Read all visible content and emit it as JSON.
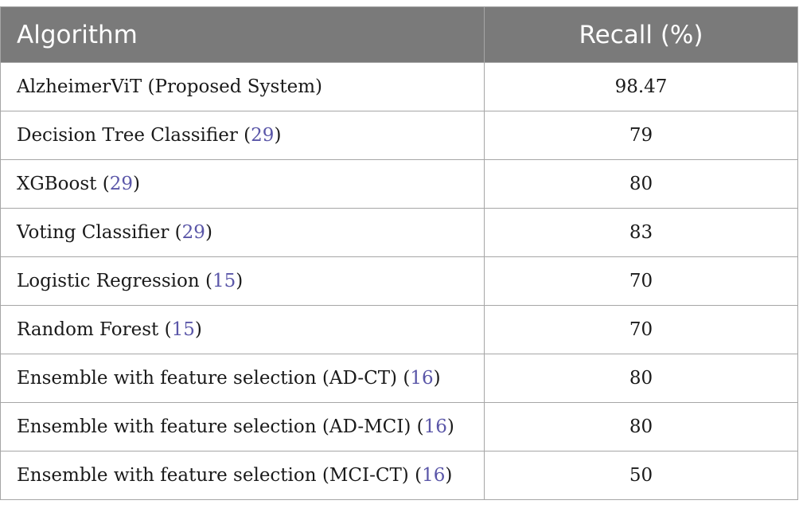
{
  "table": {
    "headers": {
      "algorithm": "Algorithm",
      "recall": "Recall (%)"
    },
    "rows": [
      {
        "algorithm": "AlzheimerViT (Proposed System)",
        "ref": "",
        "recall": "98.47"
      },
      {
        "algorithm": "Decision Tree Classifier",
        "ref": "29",
        "recall": "79"
      },
      {
        "algorithm": "XGBoost",
        "ref": "29",
        "recall": "80"
      },
      {
        "algorithm": "Voting Classifier",
        "ref": "29",
        "recall": "83"
      },
      {
        "algorithm": "Logistic Regression",
        "ref": "15",
        "recall": "70"
      },
      {
        "algorithm": "Random Forest",
        "ref": "15",
        "recall": "70"
      },
      {
        "algorithm": "Ensemble with feature selection (AD-CT)",
        "ref": "16",
        "recall": "80"
      },
      {
        "algorithm": "Ensemble with feature selection (AD-MCI)",
        "ref": "16",
        "recall": "80"
      },
      {
        "algorithm": "Ensemble with feature selection (MCI-CT)",
        "ref": "16",
        "recall": "50"
      }
    ]
  },
  "colors": {
    "header_background": "#7a7a7a",
    "header_text": "#ffffff",
    "reference_link": "#5a56a8",
    "grid_line": "#a6a6a6"
  }
}
